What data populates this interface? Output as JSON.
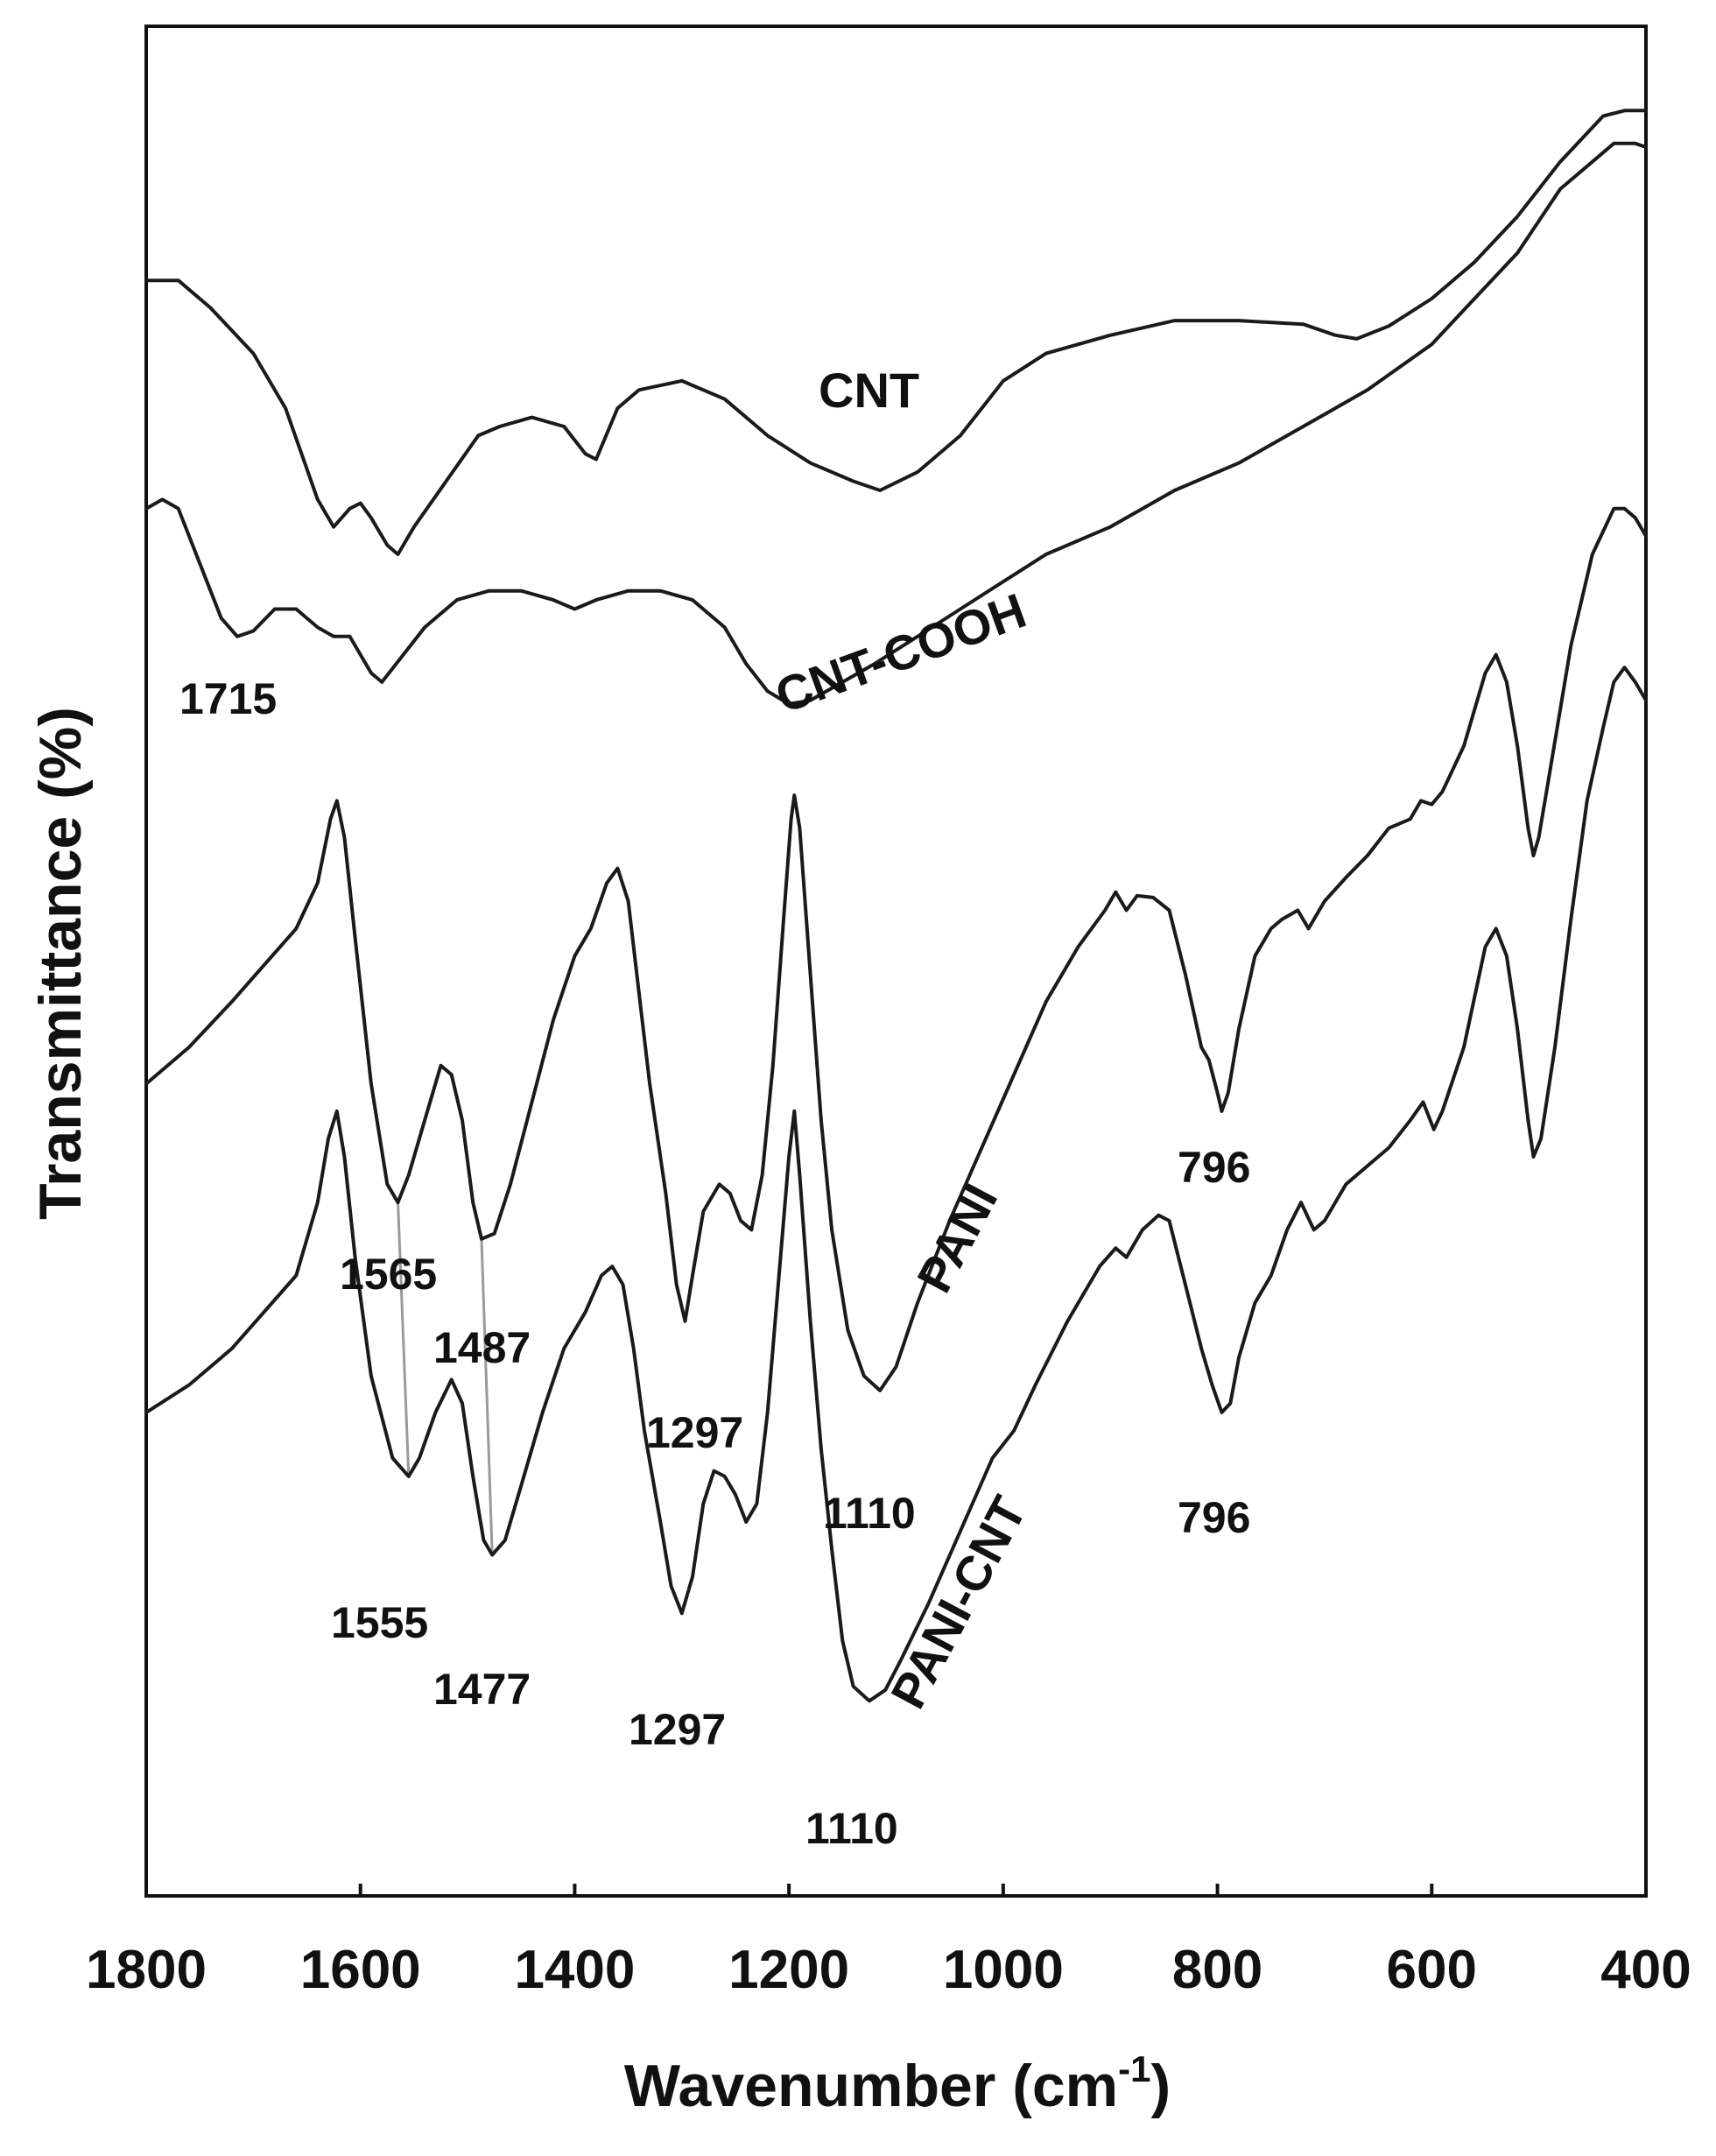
{
  "chart_data": {
    "type": "line",
    "xlabel": "Wavenumber (cm",
    "xlabel_sup": "-1",
    "xlabel_close": ")",
    "ylabel": "Transmittance (%)",
    "xlim": [
      1800,
      400
    ],
    "x_reversed": true,
    "y_axis_ticks_shown": false,
    "grid": false,
    "xticks": [
      "1800",
      "1600",
      "1400",
      "1200",
      "1000",
      "800",
      "600",
      "400"
    ],
    "xtick_values": [
      1800,
      1600,
      1400,
      1200,
      1000,
      800,
      600,
      400
    ],
    "ylim": [
      0,
      100
    ],
    "series": [
      {
        "name": "CNT",
        "points": [
          [
            1800,
            88
          ],
          [
            1770,
            88
          ],
          [
            1740,
            86.5
          ],
          [
            1700,
            84
          ],
          [
            1670,
            81
          ],
          [
            1640,
            76
          ],
          [
            1625,
            74.5
          ],
          [
            1610,
            75.5
          ],
          [
            1600,
            75.8
          ],
          [
            1590,
            75
          ],
          [
            1575,
            73.5
          ],
          [
            1565,
            73
          ],
          [
            1550,
            74.5
          ],
          [
            1520,
            77
          ],
          [
            1490,
            79.5
          ],
          [
            1470,
            80
          ],
          [
            1440,
            80.5
          ],
          [
            1410,
            80
          ],
          [
            1390,
            78.5
          ],
          [
            1380,
            78.2
          ],
          [
            1360,
            81
          ],
          [
            1340,
            82
          ],
          [
            1300,
            82.5
          ],
          [
            1260,
            81.5
          ],
          [
            1220,
            79.5
          ],
          [
            1180,
            78
          ],
          [
            1140,
            77
          ],
          [
            1115,
            76.5
          ],
          [
            1080,
            77.5
          ],
          [
            1040,
            79.5
          ],
          [
            1000,
            82.5
          ],
          [
            960,
            84
          ],
          [
            900,
            85
          ],
          [
            840,
            85.8
          ],
          [
            780,
            85.8
          ],
          [
            720,
            85.6
          ],
          [
            690,
            85
          ],
          [
            670,
            84.8
          ],
          [
            640,
            85.5
          ],
          [
            600,
            87
          ],
          [
            560,
            89
          ],
          [
            520,
            91.5
          ],
          [
            480,
            94.5
          ],
          [
            440,
            97
          ],
          [
            420,
            97.3
          ],
          [
            400,
            97.3
          ]
        ]
      },
      {
        "name": "CNT-COOH",
        "points": [
          [
            1800,
            75.5
          ],
          [
            1785,
            76
          ],
          [
            1770,
            75.5
          ],
          [
            1750,
            72.5
          ],
          [
            1730,
            69.5
          ],
          [
            1715,
            68.5
          ],
          [
            1700,
            68.8
          ],
          [
            1680,
            70
          ],
          [
            1660,
            70
          ],
          [
            1640,
            69
          ],
          [
            1625,
            68.5
          ],
          [
            1610,
            68.5
          ],
          [
            1590,
            66.5
          ],
          [
            1580,
            66
          ],
          [
            1560,
            67.5
          ],
          [
            1540,
            69
          ],
          [
            1510,
            70.5
          ],
          [
            1480,
            71
          ],
          [
            1450,
            71
          ],
          [
            1420,
            70.5
          ],
          [
            1400,
            70
          ],
          [
            1380,
            70.5
          ],
          [
            1350,
            71
          ],
          [
            1320,
            71
          ],
          [
            1290,
            70.5
          ],
          [
            1260,
            69
          ],
          [
            1240,
            67
          ],
          [
            1220,
            65.5
          ],
          [
            1200,
            64.8
          ],
          [
            1180,
            65
          ],
          [
            1150,
            66
          ],
          [
            1120,
            67
          ],
          [
            1080,
            68.5
          ],
          [
            1040,
            70
          ],
          [
            1000,
            71.5
          ],
          [
            960,
            73
          ],
          [
            900,
            74.5
          ],
          [
            840,
            76.5
          ],
          [
            780,
            78
          ],
          [
            720,
            80
          ],
          [
            660,
            82
          ],
          [
            600,
            84.5
          ],
          [
            560,
            87
          ],
          [
            520,
            89.5
          ],
          [
            480,
            93
          ],
          [
            450,
            94.5
          ],
          [
            430,
            95.5
          ],
          [
            410,
            95.5
          ],
          [
            400,
            95.3
          ]
        ]
      },
      {
        "name": "PANI",
        "points": [
          [
            1800,
            44
          ],
          [
            1760,
            46
          ],
          [
            1720,
            48.5
          ],
          [
            1690,
            50.5
          ],
          [
            1660,
            52.5
          ],
          [
            1640,
            55
          ],
          [
            1628,
            58.5
          ],
          [
            1622,
            59.5
          ],
          [
            1615,
            57.5
          ],
          [
            1605,
            52
          ],
          [
            1590,
            44
          ],
          [
            1575,
            38.5
          ],
          [
            1565,
            37.5
          ],
          [
            1555,
            39
          ],
          [
            1540,
            42
          ],
          [
            1525,
            45
          ],
          [
            1515,
            44.5
          ],
          [
            1505,
            42
          ],
          [
            1495,
            37.5
          ],
          [
            1487,
            35.5
          ],
          [
            1475,
            35.8
          ],
          [
            1460,
            38.5
          ],
          [
            1440,
            43
          ],
          [
            1420,
            47.5
          ],
          [
            1400,
            51
          ],
          [
            1385,
            52.5
          ],
          [
            1370,
            55
          ],
          [
            1360,
            55.8
          ],
          [
            1350,
            54
          ],
          [
            1340,
            49
          ],
          [
            1330,
            44
          ],
          [
            1315,
            38
          ],
          [
            1305,
            33
          ],
          [
            1297,
            31
          ],
          [
            1290,
            33.5
          ],
          [
            1280,
            37
          ],
          [
            1265,
            38.5
          ],
          [
            1255,
            38
          ],
          [
            1245,
            36.5
          ],
          [
            1235,
            36
          ],
          [
            1225,
            39
          ],
          [
            1215,
            45
          ],
          [
            1205,
            53
          ],
          [
            1198,
            58.5
          ],
          [
            1195,
            59.8
          ],
          [
            1190,
            58
          ],
          [
            1180,
            50
          ],
          [
            1170,
            42
          ],
          [
            1160,
            36
          ],
          [
            1145,
            30.5
          ],
          [
            1130,
            28
          ],
          [
            1115,
            27.2
          ],
          [
            1100,
            28.5
          ],
          [
            1080,
            32
          ],
          [
            1050,
            36.5
          ],
          [
            1020,
            40.5
          ],
          [
            990,
            44.5
          ],
          [
            960,
            48.5
          ],
          [
            930,
            51.5
          ],
          [
            905,
            53.5
          ],
          [
            895,
            54.5
          ],
          [
            885,
            53.5
          ],
          [
            875,
            54.3
          ],
          [
            860,
            54.2
          ],
          [
            845,
            53.5
          ],
          [
            830,
            50
          ],
          [
            815,
            46
          ],
          [
            808,
            45.3
          ],
          [
            800,
            43.5
          ],
          [
            796,
            42.5
          ],
          [
            790,
            43.5
          ],
          [
            780,
            47
          ],
          [
            765,
            51
          ],
          [
            750,
            52.5
          ],
          [
            740,
            53
          ],
          [
            725,
            53.5
          ],
          [
            715,
            52.5
          ],
          [
            700,
            54
          ],
          [
            680,
            55.3
          ],
          [
            660,
            56.5
          ],
          [
            640,
            58
          ],
          [
            620,
            58.5
          ],
          [
            610,
            59.5
          ],
          [
            600,
            59.3
          ],
          [
            590,
            60
          ],
          [
            570,
            62.5
          ],
          [
            550,
            66.5
          ],
          [
            540,
            67.5
          ],
          [
            530,
            66
          ],
          [
            520,
            62.5
          ],
          [
            510,
            58
          ],
          [
            505,
            56.5
          ],
          [
            500,
            57.5
          ],
          [
            490,
            61
          ],
          [
            470,
            68
          ],
          [
            450,
            73
          ],
          [
            430,
            75.5
          ],
          [
            420,
            75.5
          ],
          [
            410,
            75
          ],
          [
            400,
            74
          ]
        ]
      },
      {
        "name": "PANI-CNT",
        "points": [
          [
            1800,
            26
          ],
          [
            1760,
            27.5
          ],
          [
            1720,
            29.5
          ],
          [
            1690,
            31.5
          ],
          [
            1660,
            33.5
          ],
          [
            1640,
            37.5
          ],
          [
            1630,
            41
          ],
          [
            1622,
            42.5
          ],
          [
            1615,
            40
          ],
          [
            1605,
            34.5
          ],
          [
            1590,
            28
          ],
          [
            1570,
            23.5
          ],
          [
            1555,
            22.5
          ],
          [
            1545,
            23.5
          ],
          [
            1530,
            26
          ],
          [
            1515,
            27.8
          ],
          [
            1505,
            26.5
          ],
          [
            1495,
            22.5
          ],
          [
            1485,
            19
          ],
          [
            1477,
            18.2
          ],
          [
            1465,
            19
          ],
          [
            1450,
            22
          ],
          [
            1430,
            26
          ],
          [
            1410,
            29.5
          ],
          [
            1390,
            31.5
          ],
          [
            1375,
            33.5
          ],
          [
            1365,
            34
          ],
          [
            1355,
            33
          ],
          [
            1345,
            29.5
          ],
          [
            1335,
            25
          ],
          [
            1320,
            20
          ],
          [
            1310,
            16.5
          ],
          [
            1300,
            15
          ],
          [
            1290,
            17
          ],
          [
            1280,
            21
          ],
          [
            1270,
            22.8
          ],
          [
            1260,
            22.5
          ],
          [
            1250,
            21.5
          ],
          [
            1240,
            20
          ],
          [
            1230,
            21
          ],
          [
            1220,
            26
          ],
          [
            1210,
            33
          ],
          [
            1200,
            40
          ],
          [
            1195,
            42.5
          ],
          [
            1190,
            39
          ],
          [
            1180,
            31
          ],
          [
            1170,
            24
          ],
          [
            1160,
            18.5
          ],
          [
            1150,
            13.5
          ],
          [
            1140,
            11
          ],
          [
            1125,
            10.2
          ],
          [
            1110,
            10.8
          ],
          [
            1095,
            12.5
          ],
          [
            1070,
            15.5
          ],
          [
            1040,
            19.5
          ],
          [
            1010,
            23.5
          ],
          [
            990,
            25
          ],
          [
            970,
            27.5
          ],
          [
            940,
            31
          ],
          [
            910,
            34
          ],
          [
            895,
            35
          ],
          [
            885,
            34.5
          ],
          [
            870,
            36
          ],
          [
            855,
            36.8
          ],
          [
            845,
            36.5
          ],
          [
            830,
            33
          ],
          [
            815,
            29.5
          ],
          [
            805,
            27.5
          ],
          [
            796,
            26
          ],
          [
            788,
            26.5
          ],
          [
            780,
            29
          ],
          [
            765,
            32
          ],
          [
            750,
            33.5
          ],
          [
            735,
            36
          ],
          [
            722,
            37.5
          ],
          [
            710,
            36
          ],
          [
            700,
            36.5
          ],
          [
            680,
            38.5
          ],
          [
            660,
            39.5
          ],
          [
            640,
            40.5
          ],
          [
            620,
            42
          ],
          [
            608,
            43
          ],
          [
            598,
            41.5
          ],
          [
            590,
            42.5
          ],
          [
            570,
            46
          ],
          [
            550,
            51.5
          ],
          [
            540,
            52.5
          ],
          [
            530,
            51
          ],
          [
            520,
            47
          ],
          [
            510,
            42
          ],
          [
            505,
            40
          ],
          [
            498,
            41
          ],
          [
            485,
            46
          ],
          [
            470,
            53
          ],
          [
            455,
            59.5
          ],
          [
            440,
            63.5
          ],
          [
            430,
            66
          ],
          [
            420,
            66.8
          ],
          [
            410,
            66
          ],
          [
            400,
            65
          ]
        ]
      }
    ],
    "series_labels": [
      {
        "text": "CNT",
        "series": "CNT"
      },
      {
        "text": "CNT-COOH",
        "series": "CNT-COOH"
      },
      {
        "text": "PANI",
        "series": "PANI"
      },
      {
        "text": "PANI-CNT",
        "series": "PANI-CNT"
      }
    ],
    "annotations": [
      {
        "text": "1715",
        "x": 1715,
        "series": "CNT-COOH"
      },
      {
        "text": "1565",
        "x": 1565,
        "series": "PANI"
      },
      {
        "text": "1487",
        "x": 1487,
        "series": "PANI"
      },
      {
        "text": "1297",
        "x": 1297,
        "series": "PANI"
      },
      {
        "text": "1110",
        "x": 1110,
        "series": "PANI"
      },
      {
        "text": "796",
        "x": 796,
        "series": "PANI"
      },
      {
        "text": "1555",
        "x": 1555,
        "series": "PANI-CNT"
      },
      {
        "text": "1477",
        "x": 1477,
        "series": "PANI-CNT"
      },
      {
        "text": "1297",
        "x": 1297,
        "series": "PANI-CNT"
      },
      {
        "text": "1110",
        "x": 1110,
        "series": "PANI-CNT"
      },
      {
        "text": "796",
        "x": 796,
        "series": "PANI-CNT"
      }
    ],
    "guides": [
      {
        "from_series": "PANI",
        "to_series": "PANI-CNT",
        "from_x": 1565,
        "to_x": 1555
      },
      {
        "from_series": "PANI",
        "to_series": "PANI-CNT",
        "from_x": 1487,
        "to_x": 1477
      }
    ]
  }
}
